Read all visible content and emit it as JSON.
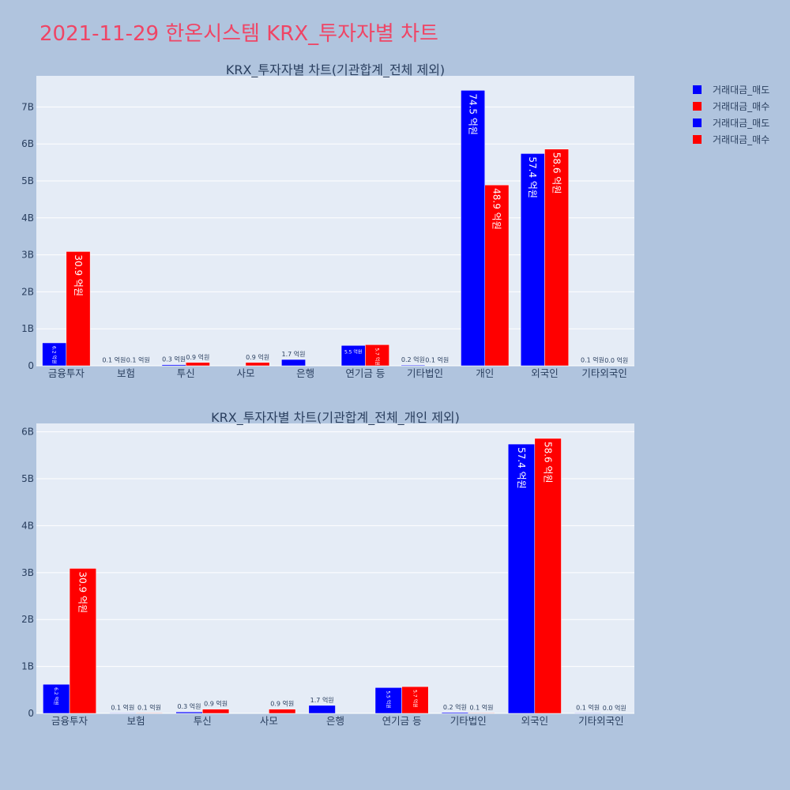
{
  "page_title": "2021-11-29 한온시스템 KRX_투자자별 차트",
  "legend": [
    {
      "label": "거래대금_매도",
      "color": "#0000ff"
    },
    {
      "label": "거래대금_매수",
      "color": "#ff0000"
    },
    {
      "label": "거래대금_매도",
      "color": "#0000ff"
    },
    {
      "label": "거래대금_매수",
      "color": "#ff0000"
    }
  ],
  "chart_data": [
    {
      "type": "bar",
      "title": "KRX_투자자별 차트(기관합계_전체 제외)",
      "categories": [
        "금융투자",
        "보험",
        "투신",
        "사모",
        "은행",
        "연기금 등",
        "기타법인",
        "개인",
        "외국인",
        "기타외국인"
      ],
      "series": [
        {
          "name": "거래대금_매도",
          "color": "#0000ff",
          "values": [
            620000000,
            10000000,
            30000000,
            0,
            170000000,
            550000000,
            20000000,
            7450000000,
            5740000000,
            10000000
          ],
          "labels": [
            "6.2 억원",
            "0.1 억원",
            "0.3 억원",
            "",
            "1.7 억원",
            "5.5 억원",
            "0.2 억원",
            "74.5 억원",
            "57.4 억원",
            "0.1 억원"
          ]
        },
        {
          "name": "거래대금_매수",
          "color": "#ff0000",
          "values": [
            3090000000,
            10000000,
            90000000,
            90000000,
            0,
            570000000,
            10000000,
            4890000000,
            5860000000,
            0
          ],
          "labels": [
            "30.9 억원",
            "0.1 억원",
            "0.9 억원",
            "0.9 억원",
            "",
            "5.7 억원",
            "0.1 억원",
            "48.9 억원",
            "58.6 억원",
            "0.0 억원"
          ]
        }
      ],
      "yticks": [
        0,
        1000000000,
        2000000000,
        3000000000,
        4000000000,
        5000000000,
        6000000000,
        7000000000
      ],
      "ytick_labels": [
        "0",
        "1B",
        "2B",
        "3B",
        "4B",
        "5B",
        "6B",
        "7B"
      ],
      "ylim": [
        0,
        7842105263
      ],
      "grid": true
    },
    {
      "type": "bar",
      "title": "KRX_투자자별 차트(기관합계_전체_개인 제외)",
      "categories": [
        "금융투자",
        "보험",
        "투신",
        "사모",
        "은행",
        "연기금 등",
        "기타법인",
        "외국인",
        "기타외국인"
      ],
      "series": [
        {
          "name": "거래대금_매도",
          "color": "#0000ff",
          "values": [
            620000000,
            10000000,
            30000000,
            0,
            170000000,
            550000000,
            20000000,
            5740000000,
            10000000
          ],
          "labels": [
            "6.2 억원",
            "0.1 억원",
            "0.3 억원",
            "",
            "1.7 억원",
            "5.5 억원",
            "0.2 억원",
            "57.4 억원",
            "0.1 억원"
          ]
        },
        {
          "name": "거래대금_매수",
          "color": "#ff0000",
          "values": [
            3090000000,
            10000000,
            90000000,
            90000000,
            0,
            570000000,
            10000000,
            5860000000,
            0
          ],
          "labels": [
            "30.9 억원",
            "0.1 억원",
            "0.9 억원",
            "0.9 억원",
            "",
            "5.7 억원",
            "0.1 억원",
            "58.6 억원",
            "0.0 억원"
          ]
        }
      ],
      "yticks": [
        0,
        1000000000,
        2000000000,
        3000000000,
        4000000000,
        5000000000,
        6000000000
      ],
      "ytick_labels": [
        "0",
        "1B",
        "2B",
        "3B",
        "4B",
        "5B",
        "6B"
      ],
      "ylim": [
        0,
        6179310345
      ],
      "grid": true
    }
  ]
}
